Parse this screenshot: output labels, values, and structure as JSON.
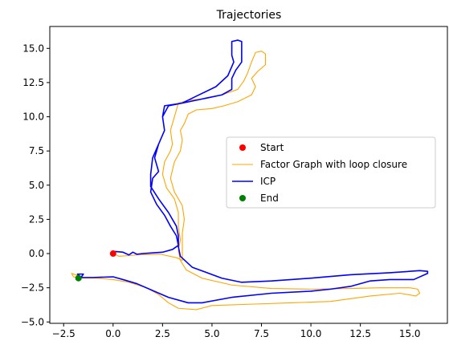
{
  "chart_data": {
    "type": "line",
    "title": "Trajectories",
    "xlabel": "",
    "ylabel": "",
    "xlim": [
      -3.2,
      16.9
    ],
    "ylim": [
      -5.1,
      16.6
    ],
    "xticks": [
      -2.5,
      0.0,
      2.5,
      5.0,
      7.5,
      10.0,
      12.5,
      15.0
    ],
    "xtick_labels": [
      "−2.5",
      "0.0",
      "2.5",
      "5.0",
      "7.5",
      "10.0",
      "12.5",
      "15.0"
    ],
    "yticks": [
      -5.0,
      -2.5,
      0.0,
      2.5,
      5.0,
      7.5,
      10.0,
      12.5,
      15.0
    ],
    "ytick_labels": [
      "−5.0",
      "−2.5",
      "0.0",
      "2.5",
      "5.0",
      "7.5",
      "10.0",
      "12.5",
      "15.0"
    ],
    "grid": false,
    "legend_position": "center-right",
    "series": [
      {
        "name": "Start",
        "kind": "marker",
        "color": "#ff0000",
        "points": [
          [
            0.0,
            0.0
          ]
        ]
      },
      {
        "name": "Factor Graph with loop closure",
        "kind": "line",
        "color": "#ffa500",
        "points": [
          [
            0.0,
            0.0
          ],
          [
            0.3,
            -0.2
          ],
          [
            1.2,
            -0.1
          ],
          [
            2.4,
            -0.05
          ],
          [
            3.2,
            -0.3
          ],
          [
            3.5,
            -0.5
          ],
          [
            3.5,
            -0.1
          ],
          [
            3.5,
            0.5
          ],
          [
            3.5,
            1.5
          ],
          [
            3.6,
            2.5
          ],
          [
            3.5,
            3.5
          ],
          [
            3.1,
            4.5
          ],
          [
            2.9,
            5.5
          ],
          [
            3.1,
            6.7
          ],
          [
            3.4,
            7.5
          ],
          [
            3.5,
            8.3
          ],
          [
            3.4,
            9.0
          ],
          [
            3.6,
            9.5
          ],
          [
            3.8,
            10.2
          ],
          [
            4.2,
            10.5
          ],
          [
            5.0,
            10.6
          ],
          [
            5.6,
            10.8
          ],
          [
            6.3,
            11.1
          ],
          [
            7.0,
            11.6
          ],
          [
            7.2,
            12.2
          ],
          [
            7.0,
            12.8
          ],
          [
            7.3,
            13.3
          ],
          [
            7.7,
            13.8
          ],
          [
            7.7,
            14.6
          ],
          [
            7.5,
            14.8
          ],
          [
            7.2,
            14.7
          ],
          [
            7.0,
            14.0
          ],
          [
            6.8,
            13.2
          ],
          [
            6.6,
            12.6
          ],
          [
            6.3,
            12.0
          ],
          [
            5.5,
            11.6
          ],
          [
            4.5,
            11.3
          ],
          [
            3.8,
            11.2
          ],
          [
            3.3,
            11.0
          ],
          [
            3.1,
            10.0
          ],
          [
            2.9,
            9.0
          ],
          [
            3.0,
            8.0
          ],
          [
            2.9,
            7.5
          ],
          [
            2.6,
            6.7
          ],
          [
            2.5,
            5.8
          ],
          [
            2.7,
            4.8
          ],
          [
            3.1,
            4.0
          ],
          [
            3.3,
            3.0
          ],
          [
            3.3,
            2.0
          ],
          [
            3.4,
            1.0
          ],
          [
            3.3,
            0.2
          ],
          [
            3.4,
            -0.5
          ],
          [
            3.7,
            -1.2
          ],
          [
            4.5,
            -1.8
          ],
          [
            6.0,
            -2.3
          ],
          [
            8.0,
            -2.55
          ],
          [
            10.0,
            -2.6
          ],
          [
            12.0,
            -2.55
          ],
          [
            13.5,
            -2.5
          ],
          [
            15.0,
            -2.5
          ],
          [
            15.4,
            -2.6
          ],
          [
            15.5,
            -2.9
          ],
          [
            15.3,
            -3.1
          ],
          [
            14.5,
            -2.9
          ],
          [
            13.0,
            -3.1
          ],
          [
            11.0,
            -3.5
          ],
          [
            9.0,
            -3.6
          ],
          [
            7.0,
            -3.7
          ],
          [
            5.0,
            -3.8
          ],
          [
            4.2,
            -4.1
          ],
          [
            3.3,
            -4.0
          ],
          [
            2.8,
            -3.6
          ],
          [
            2.3,
            -3.0
          ],
          [
            1.7,
            -2.5
          ],
          [
            0.8,
            -2.1
          ],
          [
            0.0,
            -1.9
          ],
          [
            -0.8,
            -1.8
          ],
          [
            -1.7,
            -1.8
          ],
          [
            -2.0,
            -1.7
          ],
          [
            -2.1,
            -1.45
          ],
          [
            -1.8,
            -1.6
          ],
          [
            -1.7,
            -1.7
          ]
        ]
      },
      {
        "name": "ICP",
        "kind": "line",
        "color": "#0000ff",
        "points": [
          [
            0.0,
            0.0
          ],
          [
            0.1,
            0.15
          ],
          [
            0.5,
            0.1
          ],
          [
            0.8,
            -0.1
          ],
          [
            1.0,
            0.1
          ],
          [
            1.2,
            -0.05
          ],
          [
            1.5,
            0.0
          ],
          [
            2.5,
            0.1
          ],
          [
            3.0,
            0.3
          ],
          [
            3.3,
            0.6
          ],
          [
            3.2,
            1.3
          ],
          [
            2.9,
            2.0
          ],
          [
            2.6,
            2.8
          ],
          [
            2.2,
            3.6
          ],
          [
            1.9,
            4.5
          ],
          [
            2.0,
            5.5
          ],
          [
            2.3,
            6.0
          ],
          [
            2.1,
            7.0
          ],
          [
            2.3,
            8.0
          ],
          [
            2.6,
            9.0
          ],
          [
            2.5,
            10.0
          ],
          [
            2.6,
            10.8
          ],
          [
            3.5,
            11.0
          ],
          [
            4.5,
            11.3
          ],
          [
            5.5,
            11.6
          ],
          [
            6.0,
            12.0
          ],
          [
            6.0,
            12.8
          ],
          [
            6.2,
            13.4
          ],
          [
            6.5,
            14.0
          ],
          [
            6.5,
            15.5
          ],
          [
            6.3,
            15.6
          ],
          [
            6.0,
            15.5
          ],
          [
            6.0,
            14.5
          ],
          [
            6.1,
            14.0
          ],
          [
            5.8,
            13.0
          ],
          [
            5.2,
            12.2
          ],
          [
            4.2,
            11.5
          ],
          [
            3.5,
            11.0
          ],
          [
            2.8,
            10.8
          ],
          [
            2.5,
            10.0
          ],
          [
            2.6,
            9.0
          ],
          [
            2.3,
            8.0
          ],
          [
            2.0,
            7.0
          ],
          [
            1.9,
            5.8
          ],
          [
            1.9,
            4.9
          ],
          [
            2.3,
            4.0
          ],
          [
            2.8,
            3.0
          ],
          [
            3.2,
            2.0
          ],
          [
            3.3,
            1.3
          ],
          [
            3.3,
            0.5
          ],
          [
            3.4,
            -0.2
          ],
          [
            4.0,
            -1.0
          ],
          [
            5.5,
            -1.8
          ],
          [
            6.5,
            -2.1
          ],
          [
            8.0,
            -2.0
          ],
          [
            10.0,
            -1.8
          ],
          [
            12.0,
            -1.55
          ],
          [
            14.0,
            -1.4
          ],
          [
            15.5,
            -1.25
          ],
          [
            15.9,
            -1.3
          ],
          [
            15.9,
            -1.45
          ],
          [
            15.2,
            -1.9
          ],
          [
            14.0,
            -1.9
          ],
          [
            13.0,
            -2.0
          ],
          [
            12.0,
            -2.4
          ],
          [
            11.0,
            -2.6
          ],
          [
            10.0,
            -2.75
          ],
          [
            8.0,
            -2.9
          ],
          [
            6.0,
            -3.2
          ],
          [
            4.5,
            -3.6
          ],
          [
            3.8,
            -3.6
          ],
          [
            2.8,
            -3.2
          ],
          [
            2.0,
            -2.7
          ],
          [
            1.2,
            -2.2
          ],
          [
            0.5,
            -1.9
          ],
          [
            0.0,
            -1.7
          ],
          [
            -1.0,
            -1.75
          ],
          [
            -1.6,
            -1.75
          ],
          [
            -1.8,
            -1.5
          ],
          [
            -1.5,
            -1.5
          ],
          [
            -1.6,
            -1.7
          ],
          [
            -1.75,
            -1.8
          ]
        ]
      },
      {
        "name": "End",
        "kind": "marker",
        "color": "#008000",
        "points": [
          [
            -1.75,
            -1.8
          ]
        ]
      }
    ]
  }
}
